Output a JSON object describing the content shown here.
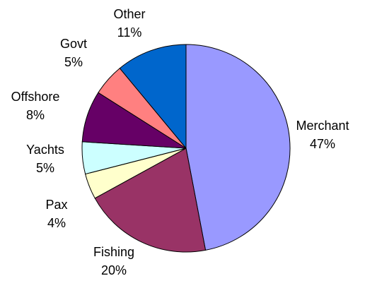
{
  "chart_data": {
    "type": "pie",
    "title": "",
    "slices": [
      {
        "label": "Merchant",
        "value": 47,
        "percent_label": "47%",
        "color": "#9999FF"
      },
      {
        "label": "Fishing",
        "value": 20,
        "percent_label": "20%",
        "color": "#993366"
      },
      {
        "label": "Pax",
        "value": 4,
        "percent_label": "4%",
        "color": "#FFFFCC"
      },
      {
        "label": "Yachts",
        "value": 5,
        "percent_label": "5%",
        "color": "#CCFFFF"
      },
      {
        "label": "Offshore",
        "value": 8,
        "percent_label": "8%",
        "color": "#660066"
      },
      {
        "label": "Govt",
        "value": 5,
        "percent_label": "5%",
        "color": "#FF8080"
      },
      {
        "label": "Other",
        "value": 11,
        "percent_label": "11%",
        "color": "#0066CC"
      }
    ],
    "start_angle": "12 o'clock",
    "direction": "clockwise",
    "legend": "none",
    "labels": "outside, category name and percentage"
  }
}
